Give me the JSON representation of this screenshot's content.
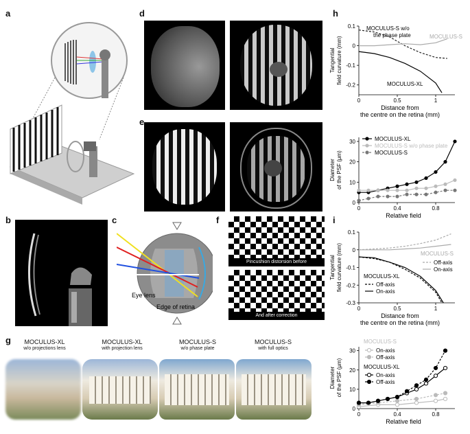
{
  "panel_labels": {
    "a": "a",
    "b": "b",
    "c": "c",
    "d": "d",
    "e": "e",
    "f": "f",
    "g": "g",
    "h": "h",
    "i": "i"
  },
  "panel_c": {
    "eye_lens": "Eye lens",
    "edge_of_retina": "Edge of retina"
  },
  "panel_f": {
    "caption_before": "Pincushion distorsion before",
    "caption_after": "And after correction"
  },
  "panel_g": [
    {
      "title": "MOCULUS-XL",
      "subtitle": "w/o projections lens"
    },
    {
      "title": "MOCULUS-XL",
      "subtitle": "with projection lens"
    },
    {
      "title": "MOCULUS-S",
      "subtitle": "w/o phase plate"
    },
    {
      "title": "MOCULUS-S",
      "subtitle": "with full optics"
    }
  ],
  "chart_data": [
    {
      "id": "h-top",
      "type": "line",
      "ylabel_line1": "Tangential",
      "ylabel_line2": "field curvature (mm)",
      "xlabel_line1": "Distance from",
      "xlabel_line2": "the centre on the retina (mm)",
      "xlim": [
        0,
        1.25
      ],
      "ylim": [
        -0.25,
        0.1
      ],
      "xticks": [
        "0",
        "0.5",
        "1"
      ],
      "yticks": [
        "0.1",
        "0",
        "-0.1",
        "-0.2"
      ],
      "series": [
        {
          "name": "MOCULUS-S w/o",
          "name2": "the phase plate",
          "style": "dashed",
          "color": "#222222",
          "x": [
            0,
            0.2,
            0.4,
            0.6,
            0.8,
            1.0,
            1.15
          ],
          "y": [
            0.08,
            0.07,
            0.045,
            0.0,
            -0.035,
            -0.06,
            -0.065
          ]
        },
        {
          "name": "MOCULUS-S",
          "style": "solid",
          "color": "#aaaaaa",
          "x": [
            0,
            0.2,
            0.4,
            0.6,
            0.8,
            1.0,
            1.15
          ],
          "y": [
            0.0,
            0.0,
            0.005,
            0.01,
            0.005,
            0.015,
            0.035
          ]
        },
        {
          "name": "MOCULUS-XL",
          "style": "solid",
          "color": "#000000",
          "x": [
            0,
            0.2,
            0.4,
            0.6,
            0.8,
            1.0,
            1.08
          ],
          "y": [
            -0.03,
            -0.04,
            -0.06,
            -0.09,
            -0.13,
            -0.19,
            -0.24
          ]
        }
      ]
    },
    {
      "id": "h-bottom",
      "type": "line",
      "ylabel_line1": "Diameter",
      "ylabel_line2": "of the PSF (μm)",
      "xlabel": "Relative field",
      "xlim": [
        0,
        1.0
      ],
      "ylim": [
        0,
        32
      ],
      "xticks": [
        "0",
        "0.4",
        "0.8"
      ],
      "yticks": [
        "0",
        "10",
        "20",
        "30"
      ],
      "legend": [
        "MOCULUS-XL",
        "MOCULUS-S w/o phase plate",
        "MOCULUS-S"
      ],
      "series": [
        {
          "name": "MOCULUS-XL",
          "color": "#000000",
          "style": "solid",
          "x": [
            0,
            0.1,
            0.2,
            0.3,
            0.4,
            0.5,
            0.6,
            0.7,
            0.8,
            0.9,
            1.0
          ],
          "y": [
            5,
            5,
            6,
            7,
            8,
            9,
            10,
            12,
            15,
            20,
            30
          ]
        },
        {
          "name": "MOCULUS-S w/o phase plate",
          "color": "#bbbbbb",
          "style": "solid",
          "x": [
            0,
            0.1,
            0.2,
            0.3,
            0.4,
            0.5,
            0.6,
            0.7,
            0.8,
            0.9,
            1.0
          ],
          "y": [
            6,
            6,
            6,
            6,
            6,
            6,
            7,
            7,
            8,
            9,
            11
          ]
        },
        {
          "name": "MOCULUS-S",
          "color": "#777777",
          "style": "dashed",
          "x": [
            0,
            0.1,
            0.2,
            0.3,
            0.4,
            0.5,
            0.6,
            0.7,
            0.8,
            0.9,
            1.0
          ],
          "y": [
            1,
            2,
            3,
            3,
            3,
            4,
            4,
            4,
            5,
            6,
            6
          ]
        }
      ]
    },
    {
      "id": "i-top",
      "type": "line",
      "ylabel_line1": "Tangential",
      "ylabel_line2": "field curvature (mm)",
      "xlabel_line1": "Distance from",
      "xlabel_line2": "the centre on the retina (mm)",
      "xlim": [
        0,
        1.25
      ],
      "ylim": [
        -0.3,
        0.1
      ],
      "xticks": [
        "0",
        "0.5",
        "1"
      ],
      "yticks": [
        "0.1",
        "0",
        "-0.1",
        "-0.2",
        "-0.3"
      ],
      "legend_s_title": "MOCULUS-S",
      "legend_s": [
        "Off-axis",
        "On-axis"
      ],
      "legend_xl_title": "MOCULUS-XL",
      "legend_xl": [
        "Off-axis",
        "On-axis"
      ],
      "series": [
        {
          "name": "Off-axis",
          "group": "MOCULUS-S",
          "style": "dashed",
          "color": "#aaaaaa",
          "x": [
            0,
            0.2,
            0.4,
            0.6,
            0.8,
            1.0,
            1.2
          ],
          "y": [
            0.0,
            0.005,
            0.01,
            0.02,
            0.035,
            0.055,
            0.09
          ]
        },
        {
          "name": "On-axis",
          "group": "MOCULUS-S",
          "style": "solid",
          "color": "#aaaaaa",
          "x": [
            0,
            0.2,
            0.4,
            0.6,
            0.8,
            1.0,
            1.2
          ],
          "y": [
            0.0,
            0.0,
            0.0,
            0.005,
            0.01,
            0.02,
            0.03
          ]
        },
        {
          "name": "Off-axis",
          "group": "MOCULUS-XL",
          "style": "dashed",
          "color": "#000000",
          "x": [
            0,
            0.2,
            0.4,
            0.6,
            0.8,
            1.0,
            1.08
          ],
          "y": [
            -0.04,
            -0.05,
            -0.07,
            -0.11,
            -0.16,
            -0.24,
            -0.3
          ]
        },
        {
          "name": "On-axis",
          "group": "MOCULUS-XL",
          "style": "solid",
          "color": "#000000",
          "x": [
            0,
            0.2,
            0.4,
            0.6,
            0.8,
            1.0,
            1.1
          ],
          "y": [
            -0.04,
            -0.045,
            -0.07,
            -0.1,
            -0.15,
            -0.23,
            -0.3
          ]
        }
      ]
    },
    {
      "id": "i-bottom",
      "type": "line",
      "ylabel_line1": "Diameter",
      "ylabel_line2": "of the PSF (μm)",
      "xlabel": "Relative field",
      "xlim": [
        0,
        1.0
      ],
      "ylim": [
        0,
        32
      ],
      "xticks": [
        "0",
        "0.4",
        "0.8"
      ],
      "yticks": [
        "0",
        "10",
        "20",
        "30"
      ],
      "legend_s_title": "MOCULUS-S",
      "legend_s": [
        "On-axis",
        "Off-axis"
      ],
      "legend_xl_title": "MOCULUS-XL",
      "legend_xl": [
        "On-axis",
        "Off-axis"
      ],
      "series": [
        {
          "name": "On-axis",
          "group": "MOCULUS-S",
          "color": "#bbbbbb",
          "marker": "open",
          "style": "solid",
          "x": [
            0,
            0.2,
            0.4,
            0.6,
            0.8,
            0.9
          ],
          "y": [
            1,
            2,
            2,
            3,
            4,
            5
          ]
        },
        {
          "name": "Off-axis",
          "group": "MOCULUS-S",
          "color": "#bbbbbb",
          "marker": "filled",
          "style": "dashed",
          "x": [
            0,
            0.2,
            0.4,
            0.6,
            0.8,
            0.9
          ],
          "y": [
            2,
            3,
            4,
            5,
            7,
            8
          ]
        },
        {
          "name": "On-axis",
          "group": "MOCULUS-XL",
          "color": "#000000",
          "marker": "open",
          "style": "solid",
          "x": [
            0,
            0.1,
            0.2,
            0.3,
            0.4,
            0.5,
            0.6,
            0.7,
            0.8,
            0.9
          ],
          "y": [
            3,
            3,
            4,
            5,
            6,
            8,
            10,
            13,
            17,
            21
          ]
        },
        {
          "name": "Off-axis",
          "group": "MOCULUS-XL",
          "color": "#000000",
          "marker": "filled",
          "style": "dashed",
          "x": [
            0,
            0.1,
            0.2,
            0.3,
            0.4,
            0.5,
            0.6,
            0.7,
            0.8,
            0.9
          ],
          "y": [
            3,
            3,
            4,
            5,
            6,
            9,
            12,
            15,
            21,
            30
          ]
        }
      ]
    }
  ]
}
